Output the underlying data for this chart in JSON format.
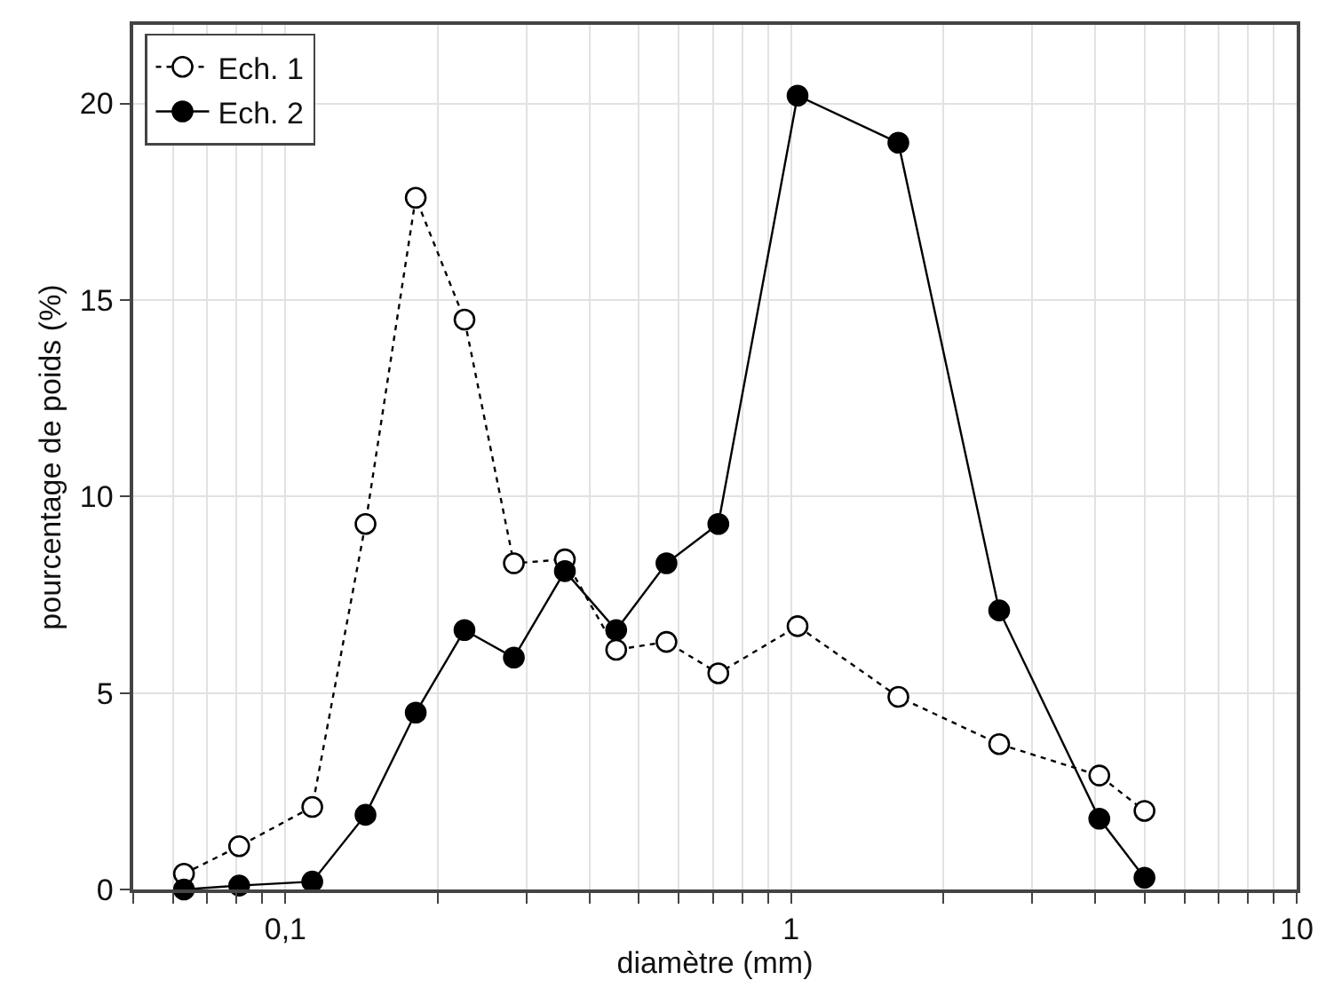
{
  "chart_data": {
    "type": "line",
    "xlabel": "diamètre (mm)",
    "ylabel": "pourcentage de poids (%)",
    "log": "x",
    "xlim": [
      0.05,
      10
    ],
    "ylim": [
      0,
      22
    ],
    "xticks": [
      {
        "value": 0.05,
        "label": null
      },
      {
        "value": 0.06,
        "label": null
      },
      {
        "value": 0.07,
        "label": null
      },
      {
        "value": 0.08,
        "label": null
      },
      {
        "value": 0.09,
        "label": null
      },
      {
        "value": 0.1,
        "label": "0,1"
      },
      {
        "value": 0.2,
        "label": null
      },
      {
        "value": 0.3,
        "label": null
      },
      {
        "value": 0.4,
        "label": null
      },
      {
        "value": 0.5,
        "label": null
      },
      {
        "value": 0.6,
        "label": null
      },
      {
        "value": 0.7,
        "label": null
      },
      {
        "value": 0.8,
        "label": null
      },
      {
        "value": 0.9,
        "label": null
      },
      1,
      {
        "value": 2,
        "label": null
      },
      {
        "value": 3,
        "label": null
      },
      {
        "value": 4,
        "label": null
      },
      {
        "value": 5,
        "label": null
      },
      {
        "value": 6,
        "label": null
      },
      {
        "value": 7,
        "label": null
      },
      {
        "value": 8,
        "label": null
      },
      {
        "value": 9,
        "label": null
      },
      10
    ],
    "yticks": [
      0,
      5,
      10,
      15,
      20
    ],
    "grid": true,
    "legend": "top left",
    "marker": "circle",
    "x": [
      0.063,
      0.081,
      0.113,
      0.144,
      0.181,
      0.226,
      0.283,
      0.357,
      0.451,
      0.567,
      0.718,
      1.03,
      1.63,
      2.58,
      4.07,
      5.0
    ],
    "series": [
      {
        "name": "Ech. 1",
        "color": "#000000",
        "line_style": "dotted",
        "values": [
          0.4,
          1.1,
          2.1,
          9.3,
          17.6,
          14.5,
          8.3,
          8.4,
          6.1,
          6.3,
          5.5,
          6.7,
          4.9,
          3.7,
          2.9,
          2.0
        ]
      },
      {
        "name": "Ech. 2",
        "color": "#000000",
        "line_style": "solid",
        "values": [
          0.0,
          0.1,
          0.2,
          1.9,
          4.5,
          6.6,
          5.9,
          8.1,
          6.6,
          8.3,
          9.3,
          20.2,
          19.0,
          7.1,
          1.8,
          0.3
        ]
      }
    ]
  }
}
